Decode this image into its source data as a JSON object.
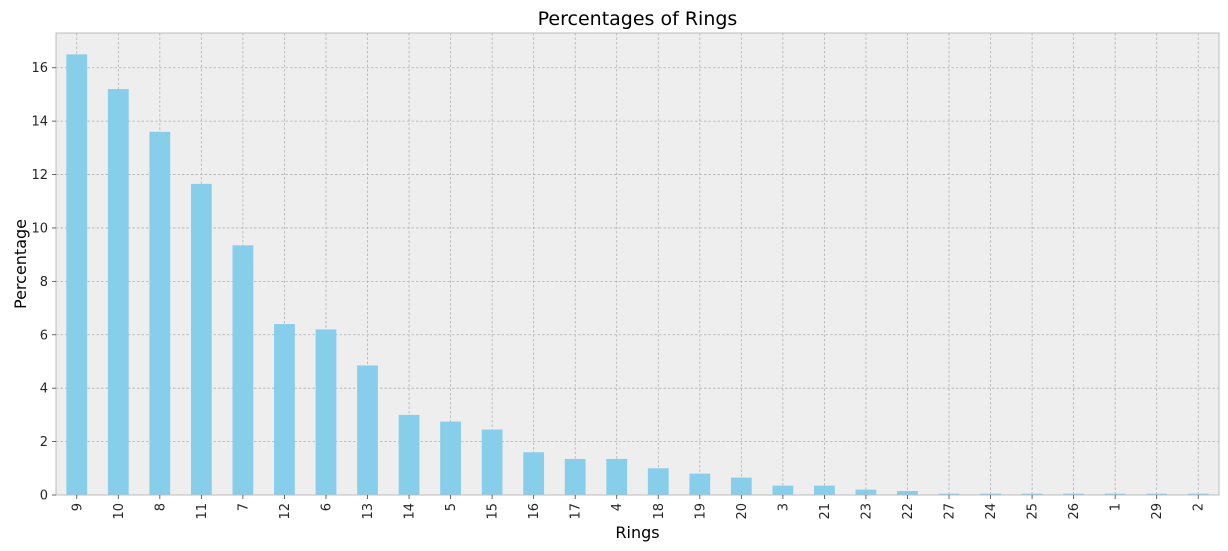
{
  "chart_data": {
    "type": "bar",
    "title": "Percentages of Rings",
    "xlabel": "Rings",
    "ylabel": "Percentage",
    "categories": [
      "9",
      "10",
      "8",
      "11",
      "7",
      "12",
      "6",
      "13",
      "14",
      "5",
      "15",
      "16",
      "17",
      "4",
      "18",
      "19",
      "20",
      "3",
      "21",
      "23",
      "22",
      "27",
      "24",
      "25",
      "26",
      "1",
      "29",
      "2"
    ],
    "values": [
      16.5,
      15.2,
      13.6,
      11.65,
      9.35,
      6.4,
      6.2,
      4.85,
      3.0,
      2.75,
      2.45,
      1.6,
      1.35,
      1.35,
      1.0,
      0.8,
      0.65,
      0.35,
      0.35,
      0.2,
      0.15,
      0.05,
      0.05,
      0.05,
      0.05,
      0.05,
      0.05,
      0.05
    ],
    "yticks": [
      0,
      2,
      4,
      6,
      8,
      10,
      12,
      14,
      16
    ],
    "ylim": [
      0,
      17.3
    ],
    "grid": true,
    "colors": {
      "bar": "#87ceeb",
      "plot_bg": "#eeeeee",
      "grid": "#b2b2b2",
      "frame": "#bcbcbc"
    }
  }
}
